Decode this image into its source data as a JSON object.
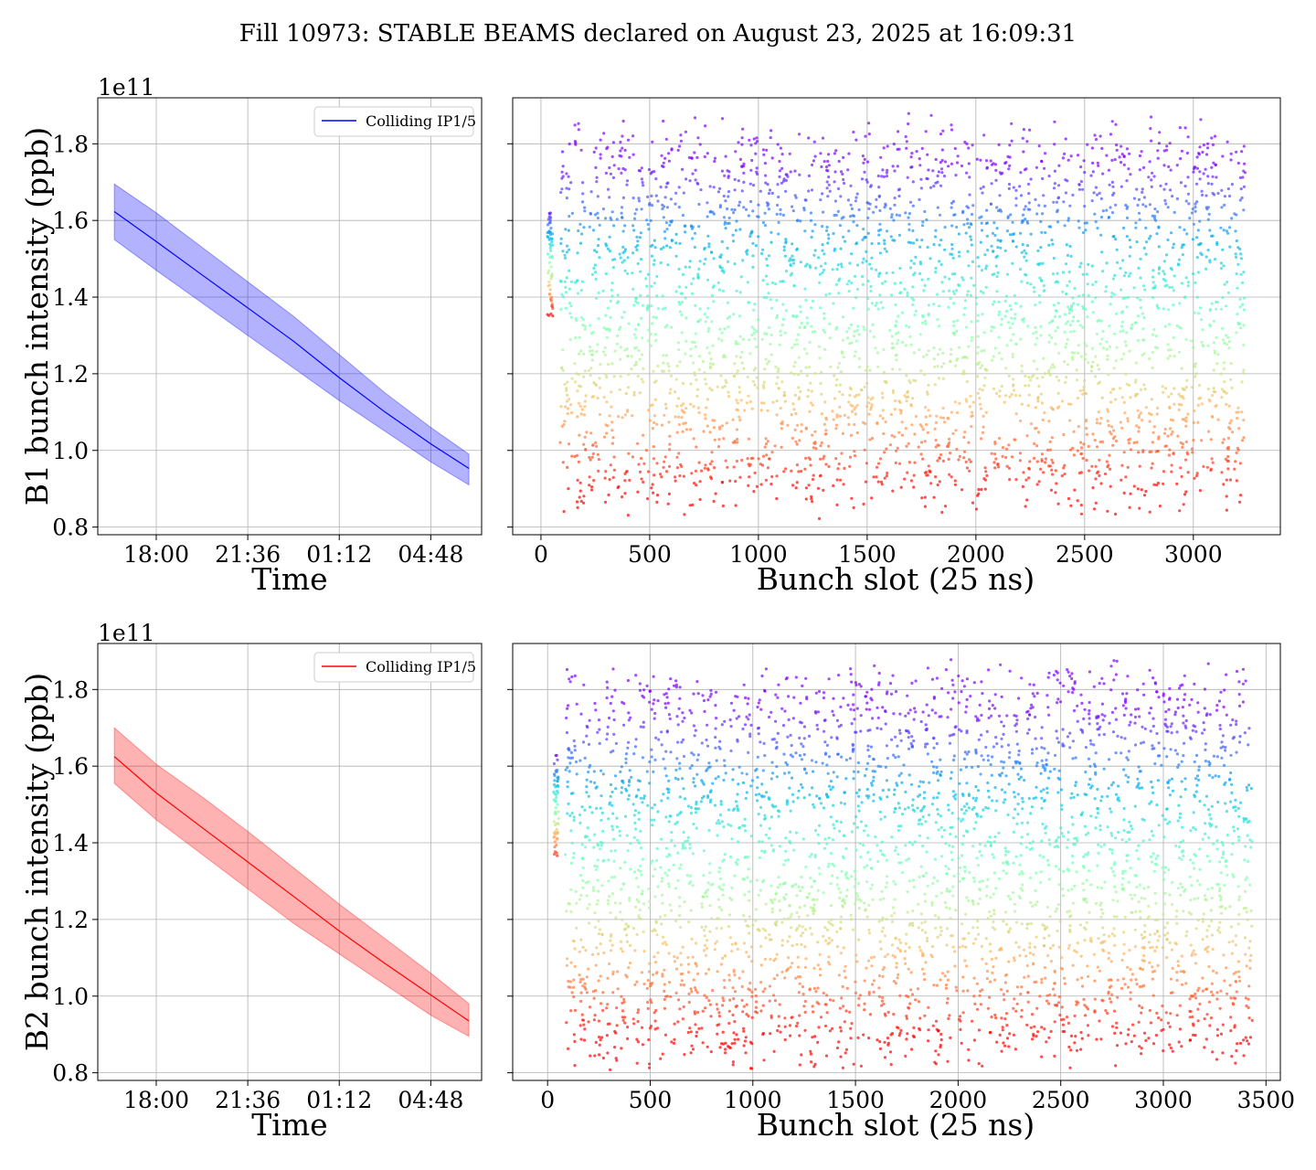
{
  "figure": {
    "title": "Fill 10973: STABLE BEAMS declared on August 23, 2025 at 16:09:31"
  },
  "colors": {
    "b1_line": "#0000ff",
    "b2_line": "#ff0000",
    "grid": "#b0b0b0"
  },
  "chart_data": [
    {
      "id": "b1-time",
      "type": "line",
      "title": "",
      "xlabel": "Time",
      "ylabel": "B1 bunch intensity (ppb)",
      "y_offset_label": "1e11",
      "xlim_hours": [
        15.7,
        30.8
      ],
      "ylim": [
        0.78,
        1.92
      ],
      "x_ticks": [
        {
          "hours": 18.0,
          "label": "18:00"
        },
        {
          "hours": 21.6,
          "label": "21:36"
        },
        {
          "hours": 25.2,
          "label": "01:12"
        },
        {
          "hours": 28.8,
          "label": "04:48"
        }
      ],
      "y_ticks": [
        "0.8",
        "1.0",
        "1.2",
        "1.4",
        "1.6",
        "1.8"
      ],
      "grid": true,
      "legend_position": "top-right",
      "series": [
        {
          "name": "Colliding IP1/5",
          "color": "#0000ff",
          "x_hours": [
            16.35,
            18.0,
            19.8,
            21.6,
            23.4,
            25.2,
            27.0,
            28.8,
            30.3
          ],
          "mean": [
            1.623,
            1.545,
            1.458,
            1.372,
            1.285,
            1.19,
            1.1,
            1.017,
            0.953
          ],
          "upper": [
            1.695,
            1.62,
            1.53,
            1.44,
            1.35,
            1.25,
            1.15,
            1.06,
            0.99
          ],
          "lower": [
            1.55,
            1.47,
            1.385,
            1.3,
            1.215,
            1.13,
            1.05,
            0.97,
            0.91
          ]
        }
      ]
    },
    {
      "id": "b1-slot",
      "type": "scatter",
      "title": "",
      "xlabel": "Bunch slot (25 ns)",
      "ylabel": "",
      "xlim": [
        -130,
        3400
      ],
      "ylim": [
        0.78,
        1.92
      ],
      "x_ticks": [
        "0",
        "500",
        "1000",
        "1500",
        "2000",
        "2500",
        "3000"
      ],
      "colormap": "rainbow",
      "grid": true,
      "slot_range": [
        30,
        3240
      ],
      "intensity_band": [
        0.88,
        1.82
      ]
    },
    {
      "id": "b2-time",
      "type": "line",
      "title": "",
      "xlabel": "Time",
      "ylabel": "B2 bunch intensity (ppb)",
      "y_offset_label": "1e11",
      "xlim_hours": [
        15.7,
        30.8
      ],
      "ylim": [
        0.78,
        1.92
      ],
      "x_ticks": [
        {
          "hours": 18.0,
          "label": "18:00"
        },
        {
          "hours": 21.6,
          "label": "21:36"
        },
        {
          "hours": 25.2,
          "label": "01:12"
        },
        {
          "hours": 28.8,
          "label": "04:48"
        }
      ],
      "y_ticks": [
        "0.8",
        "1.0",
        "1.2",
        "1.4",
        "1.6",
        "1.8"
      ],
      "grid": true,
      "legend_position": "top-right",
      "series": [
        {
          "name": "Colliding IP1/5",
          "color": "#ff0000",
          "x_hours": [
            16.35,
            18.0,
            19.8,
            21.6,
            23.4,
            25.2,
            27.0,
            28.8,
            30.3
          ],
          "mean": [
            1.625,
            1.53,
            1.44,
            1.35,
            1.26,
            1.17,
            1.085,
            1.003,
            0.935
          ],
          "upper": [
            1.7,
            1.605,
            1.52,
            1.43,
            1.335,
            1.24,
            1.15,
            1.06,
            0.98
          ],
          "lower": [
            1.555,
            1.46,
            1.37,
            1.28,
            1.19,
            1.11,
            1.03,
            0.95,
            0.895
          ]
        }
      ]
    },
    {
      "id": "b2-slot",
      "type": "scatter",
      "title": "",
      "xlabel": "Bunch slot (25 ns)",
      "ylabel": "",
      "xlim": [
        -170,
        3570
      ],
      "ylim": [
        0.78,
        1.92
      ],
      "x_ticks": [
        "0",
        "500",
        "1000",
        "1500",
        "2000",
        "2500",
        "3000",
        "3500"
      ],
      "colormap": "rainbow",
      "grid": true,
      "slot_range": [
        30,
        3430
      ],
      "intensity_band": [
        0.86,
        1.82
      ]
    }
  ]
}
